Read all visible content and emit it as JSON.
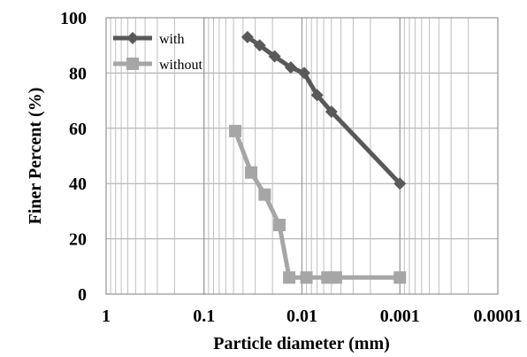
{
  "chart_data": {
    "type": "line",
    "title": "",
    "xlabel": "Particle diameter (mm)",
    "ylabel": "Finer Percent  (%)",
    "x_scale": "log",
    "x_reversed": true,
    "xlim": [
      1,
      0.0001
    ],
    "ylim": [
      0,
      100
    ],
    "x_ticks": [
      1,
      0.1,
      0.01,
      0.001,
      0.0001
    ],
    "x_tick_labels": [
      "1",
      "0.1",
      "0.01",
      "0.001",
      "0.0001"
    ],
    "y_ticks": [
      0,
      20,
      40,
      60,
      80,
      100
    ],
    "y_tick_labels": [
      "0",
      "20",
      "40",
      "60",
      "80",
      "100"
    ],
    "grid": true,
    "legend_position": "top-left",
    "series": [
      {
        "name": "with",
        "color": "#595959",
        "marker": "diamond",
        "x": [
          0.036,
          0.027,
          0.019,
          0.013,
          0.0095,
          0.007,
          0.005,
          0.001
        ],
        "y": [
          93,
          90,
          86,
          82,
          80,
          72,
          66,
          40
        ]
      },
      {
        "name": "without",
        "color": "#a6a6a6",
        "marker": "square",
        "x": [
          0.048,
          0.033,
          0.024,
          0.017,
          0.0135,
          0.009,
          0.0055,
          0.0045,
          0.001
        ],
        "y": [
          59,
          44,
          36,
          25,
          6,
          6,
          6,
          6,
          6
        ]
      }
    ]
  }
}
